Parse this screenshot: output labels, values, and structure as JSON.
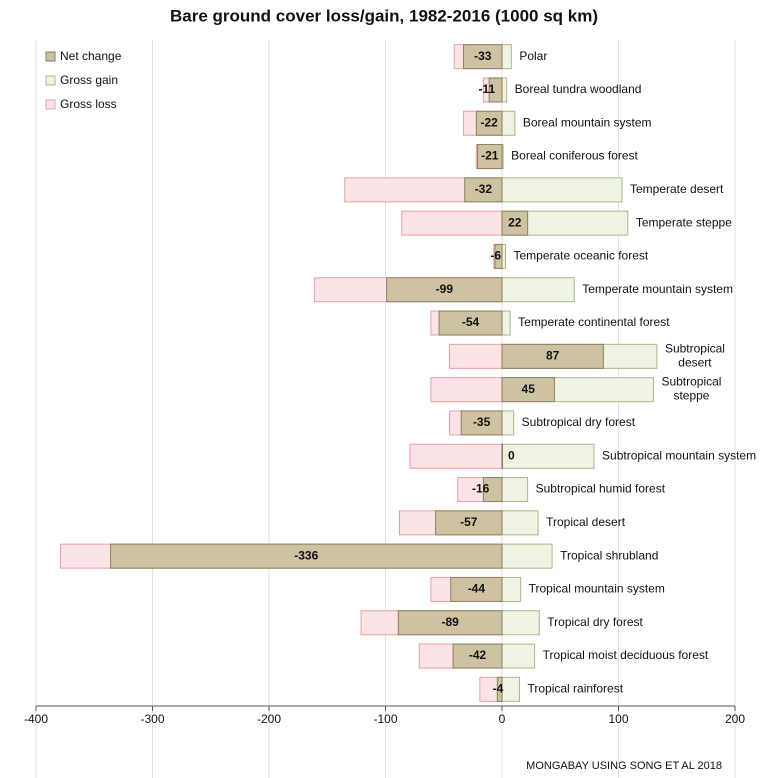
{
  "chart_data": {
    "type": "bar",
    "orientation": "horizontal",
    "title": "Bare ground cover loss/gain, 1982-2016 (1000 sq km)",
    "source": "MONGABAY USING SONG ET AL 2018",
    "categories": [
      "Polar",
      "Boreal tundra woodland",
      "Boreal mountain system",
      "Boreal coniferous forest",
      "Temperate desert",
      "Temperate steppe",
      "Temperate oceanic forest",
      "Temperate mountain system",
      "Temperate continental forest",
      "Subtropical desert",
      "Subtropical steppe",
      "Subtropical dry forest",
      "Subtropical mountain system",
      "Subtropical humid forest",
      "Tropical desert",
      "Tropical shrubland",
      "Tropical mountain system",
      "Tropical dry forest",
      "Tropical moist deciduous forest",
      "Tropical rainforest"
    ],
    "series": [
      {
        "name": "Net change",
        "color": "#cdc3a2",
        "stroke": "#8b7f5c",
        "values": [
          -33,
          -11,
          -22,
          -21,
          -32,
          22,
          -6,
          -99,
          -54,
          87,
          45,
          -35,
          0,
          -16,
          -57,
          -336,
          -44,
          -89,
          -42,
          -4
        ]
      },
      {
        "name": "Gross gain",
        "color": "#eef3e3",
        "stroke": "#a9b98a",
        "values": [
          8,
          4,
          11,
          1,
          103,
          108,
          3,
          62,
          7,
          133,
          130,
          10,
          79,
          22,
          31,
          43,
          16,
          32,
          28,
          15
        ]
      },
      {
        "name": "Gross loss",
        "color": "#fbe3e6",
        "stroke": "#e8a0a8",
        "values": [
          -41,
          -16,
          -33,
          -22,
          -135,
          -86,
          -7,
          -161,
          -61,
          -45,
          -61,
          -45,
          -79,
          -38,
          -88,
          -379,
          -61,
          -121,
          -71,
          -19
        ]
      }
    ],
    "xlim": [
      -400,
      200
    ],
    "xticks": [
      -400,
      -300,
      -200,
      -100,
      0,
      100,
      200
    ],
    "grid": true,
    "legend": "upper left"
  }
}
